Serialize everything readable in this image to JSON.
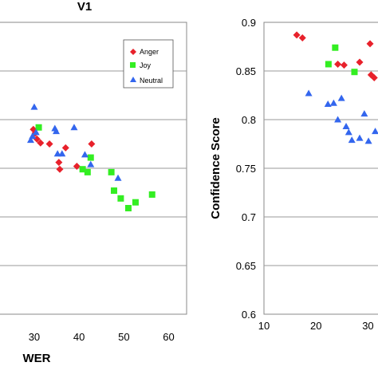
{
  "chart_data": [
    {
      "type": "scatter",
      "title": "V1",
      "xlabel": "WER",
      "ylabel": "",
      "xlim": [
        22,
        64
      ],
      "x_ticks": [
        "30",
        "40",
        "50",
        "60"
      ],
      "ylim": [
        0.6,
        0.9
      ],
      "y_ticks": [],
      "grid": "horizontal",
      "legend_position": "top-right",
      "series": [
        {
          "name": "Anger",
          "color": "#e8212b",
          "marker": "diamond",
          "x": [
            29.8,
            30.2,
            30.6,
            31.4,
            33.4,
            35.5,
            35.7,
            37.0,
            39.5,
            42.8
          ],
          "y": [
            0.79,
            0.786,
            0.78,
            0.776,
            0.775,
            0.756,
            0.749,
            0.771,
            0.752,
            0.775
          ]
        },
        {
          "name": "Joy",
          "color": "#33ee22",
          "marker": "square",
          "x": [
            31.0,
            40.8,
            41.9,
            42.6,
            47.2,
            47.8,
            49.3,
            51.0,
            52.6,
            56.3
          ],
          "y": [
            0.792,
            0.749,
            0.746,
            0.761,
            0.746,
            0.727,
            0.719,
            0.709,
            0.715,
            0.723
          ]
        },
        {
          "name": "Neutral",
          "color": "#3366ee",
          "marker": "triangle",
          "x": [
            29.2,
            29.6,
            30.0,
            30.4,
            34.6,
            34.9,
            35.2,
            36.2,
            38.9,
            41.3,
            42.6,
            48.7
          ],
          "y": [
            0.779,
            0.783,
            0.813,
            0.787,
            0.791,
            0.788,
            0.765,
            0.765,
            0.792,
            0.764,
            0.754,
            0.74
          ]
        }
      ]
    },
    {
      "type": "scatter",
      "title": "",
      "xlabel": "",
      "ylabel": "Confidence Score",
      "xlim": [
        10,
        33
      ],
      "x_ticks": [
        "10",
        "20",
        "30"
      ],
      "ylim": [
        0.6,
        0.9
      ],
      "y_ticks": [
        "0.6",
        "0.65",
        "0.7",
        "0.75",
        "0.8",
        "0.85",
        "0.9"
      ],
      "grid": "horizontal",
      "series": [
        {
          "name": "Anger",
          "color": "#e8212b",
          "marker": "diamond",
          "x": [
            16.3,
            17.4,
            24.2,
            25.4,
            28.4,
            30.4,
            30.6,
            31.2
          ],
          "y": [
            0.887,
            0.884,
            0.857,
            0.856,
            0.859,
            0.878,
            0.846,
            0.843
          ]
        },
        {
          "name": "Joy",
          "color": "#33ee22",
          "marker": "square",
          "x": [
            22.4,
            23.7,
            27.4
          ],
          "y": [
            0.857,
            0.874,
            0.849
          ]
        },
        {
          "name": "Neutral",
          "color": "#3366ee",
          "marker": "triangle",
          "x": [
            18.6,
            22.3,
            23.4,
            24.2,
            24.9,
            25.8,
            26.3,
            26.9,
            28.4,
            29.3,
            30.1,
            31.4
          ],
          "y": [
            0.827,
            0.816,
            0.817,
            0.8,
            0.822,
            0.793,
            0.787,
            0.779,
            0.781,
            0.806,
            0.778,
            0.788
          ]
        }
      ]
    }
  ]
}
